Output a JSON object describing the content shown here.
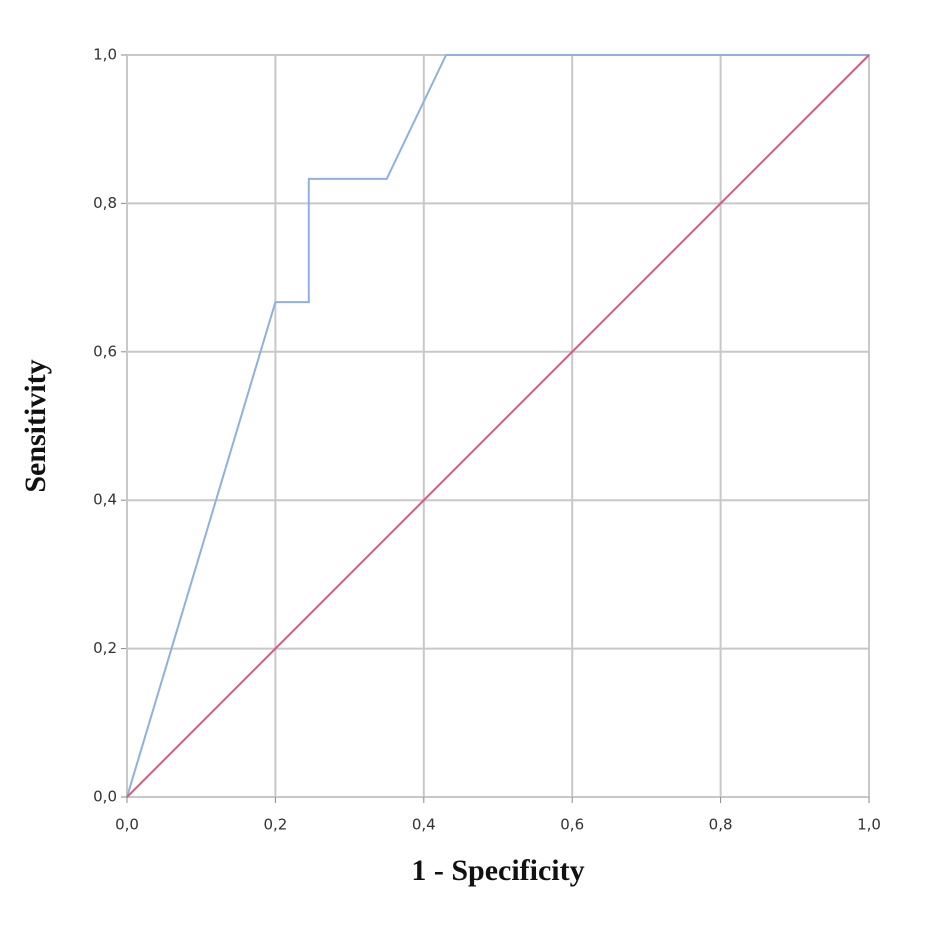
{
  "chart_data": {
    "type": "line",
    "x_label": "1 - Specificity",
    "y_label": "Sensitivity",
    "series": [
      {
        "color": "#8fb0e0",
        "x": [
          0,
          0.2,
          0.245,
          0.245,
          0.35,
          0.43,
          1.0
        ],
        "values": [
          0,
          0.667,
          0.667,
          0.833,
          0.833,
          1.0,
          1.0
        ]
      },
      {
        "color": "#d0607a",
        "x": [
          0,
          1.0
        ],
        "values": [
          0,
          1.0
        ]
      }
    ],
    "xlim": [
      0,
      1
    ],
    "ylim": [
      0,
      1
    ],
    "xticks": [
      {
        "value": 0,
        "label": "0,0"
      },
      {
        "value": 0.2,
        "label": "0,2"
      },
      {
        "value": 0.4,
        "label": "0,4"
      },
      {
        "value": 0.6,
        "label": "0,6"
      },
      {
        "value": 0.8,
        "label": "0,8"
      },
      {
        "value": 1.0,
        "label": "1,0"
      }
    ],
    "yticks": [
      {
        "value": 0,
        "label": "0,0"
      },
      {
        "value": 0.2,
        "label": "0,2"
      },
      {
        "value": 0.4,
        "label": "0,4"
      },
      {
        "value": 0.6,
        "label": "0,6"
      },
      {
        "value": 0.8,
        "label": "0,8"
      },
      {
        "value": 1.0,
        "label": "1,0"
      }
    ],
    "grid": true
  }
}
